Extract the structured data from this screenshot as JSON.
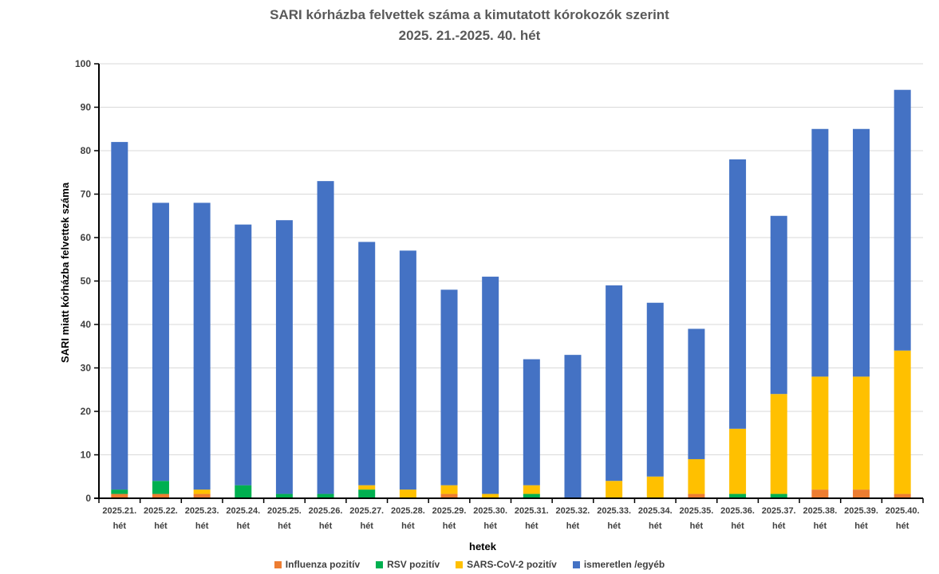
{
  "chart_data": {
    "type": "bar",
    "stacked": true,
    "title_line1": "SARI kórházba felvettek száma a kimutatott kórokozók szerint",
    "title_line2": "2025. 21.-2025. 40. hét",
    "xlabel": "hetek",
    "ylabel": "SARI miatt kórházba felvettek száma",
    "ylim": [
      0,
      100
    ],
    "yticks": [
      "0",
      "10",
      "20",
      "30",
      "40",
      "50",
      "60",
      "70",
      "80",
      "90",
      "100"
    ],
    "grid": true,
    "legend_position": "bottom",
    "categories": [
      {
        "week": "2025.21.",
        "unit": "hét"
      },
      {
        "week": "2025.22.",
        "unit": "hét"
      },
      {
        "week": "2025.23.",
        "unit": "hét"
      },
      {
        "week": "2025.24.",
        "unit": "hét"
      },
      {
        "week": "2025.25.",
        "unit": "hét"
      },
      {
        "week": "2025.26.",
        "unit": "hét"
      },
      {
        "week": "2025.27.",
        "unit": "hét"
      },
      {
        "week": "2025.28.",
        "unit": "hét"
      },
      {
        "week": "2025.29.",
        "unit": "hét"
      },
      {
        "week": "2025.30.",
        "unit": "hét"
      },
      {
        "week": "2025.31.",
        "unit": "hét"
      },
      {
        "week": "2025.32.",
        "unit": "hét"
      },
      {
        "week": "2025.33.",
        "unit": "hét"
      },
      {
        "week": "2025.34.",
        "unit": "hét"
      },
      {
        "week": "2025.35.",
        "unit": "hét"
      },
      {
        "week": "2025.36.",
        "unit": "hét"
      },
      {
        "week": "2025.37.",
        "unit": "hét"
      },
      {
        "week": "2025.38.",
        "unit": "hét"
      },
      {
        "week": "2025.39.",
        "unit": "hét"
      },
      {
        "week": "2025.40.",
        "unit": "hét"
      }
    ],
    "series": [
      {
        "name": "Influenza pozitív",
        "color": "#ED7D31",
        "values": [
          1,
          1,
          1,
          0,
          0,
          0,
          0,
          0,
          1,
          0,
          0,
          0,
          0,
          0,
          1,
          0,
          0,
          2,
          2,
          1
        ]
      },
      {
        "name": "RSV pozitív",
        "color": "#00B050",
        "values": [
          1,
          3,
          0,
          3,
          1,
          1,
          2,
          0,
          0,
          0,
          1,
          0,
          0,
          0,
          0,
          1,
          1,
          0,
          0,
          0
        ]
      },
      {
        "name": "SARS-CoV-2 pozitív",
        "color": "#FFC000",
        "values": [
          0,
          0,
          1,
          0,
          0,
          0,
          1,
          2,
          2,
          1,
          2,
          0,
          4,
          5,
          8,
          15,
          23,
          26,
          26,
          33
        ]
      },
      {
        "name": "ismeretlen /egyéb",
        "color": "#4472C4",
        "values": [
          80,
          64,
          66,
          60,
          63,
          72,
          56,
          55,
          45,
          50,
          29,
          33,
          45,
          40,
          30,
          62,
          41,
          57,
          57,
          60
        ]
      }
    ]
  }
}
